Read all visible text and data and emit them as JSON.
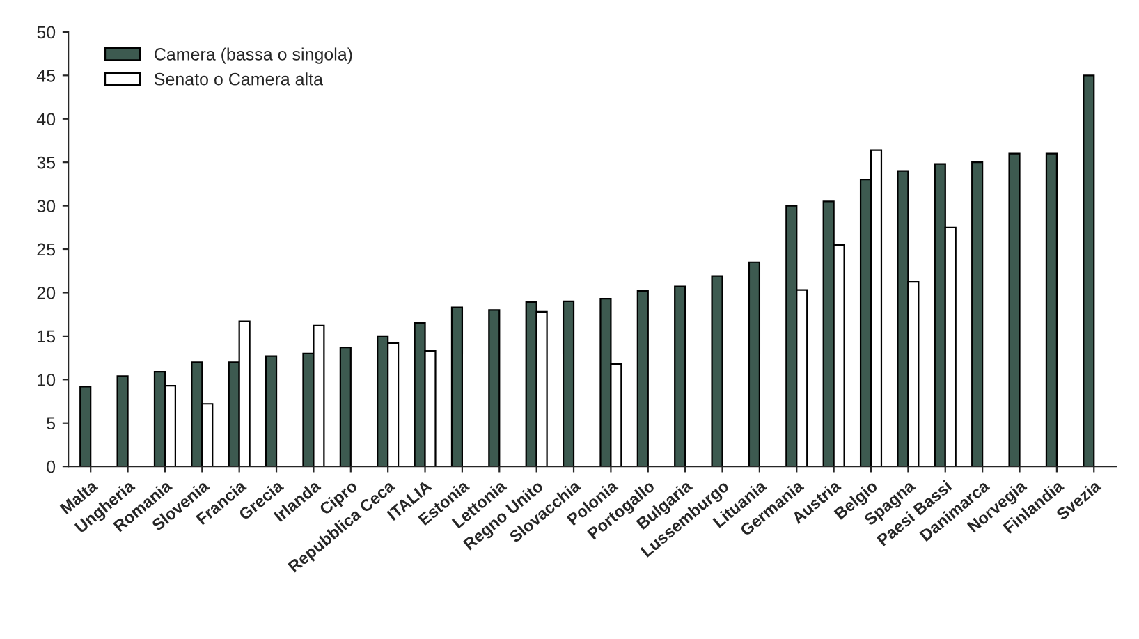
{
  "chart_data": {
    "type": "bar",
    "categories": [
      "Malta",
      "Ungheria",
      "Romania",
      "Slovenia",
      "Francia",
      "Grecia",
      "Irlanda",
      "Cipro",
      "Repubblica Ceca",
      "ITALIA",
      "Estonia",
      "Lettonia",
      "Regno Unito",
      "Slovacchia",
      "Polonia",
      "Portogallo",
      "Bulgaria",
      "Lussemburgo",
      "Lituania",
      "Germania",
      "Austria",
      "Belgio",
      "Spagna",
      "Paesi Bassi",
      "Danimarca",
      "Norvegia",
      "Finlandia",
      "Svezia"
    ],
    "series": [
      {
        "name": "Camera (bassa o singola)",
        "color": "#3d5a50",
        "values": [
          9.2,
          10.4,
          10.9,
          12,
          12,
          12.7,
          13,
          13.7,
          15,
          16.5,
          18.3,
          18,
          18.9,
          19,
          19.3,
          20.2,
          20.7,
          21.9,
          23.5,
          30,
          30.5,
          33,
          34,
          34.8,
          35,
          36,
          36,
          45
        ]
      },
      {
        "name": "Senato o Camera alta",
        "color": "#ffffff",
        "values": [
          null,
          null,
          9.3,
          7.2,
          16.7,
          null,
          16.2,
          null,
          14.2,
          13.3,
          null,
          null,
          17.8,
          null,
          11.8,
          null,
          null,
          null,
          null,
          20.3,
          25.5,
          36.4,
          21.3,
          27.5,
          null,
          null,
          null,
          null
        ]
      }
    ],
    "ylim": [
      0,
      50
    ],
    "yticks": [
      0,
      5,
      10,
      15,
      20,
      25,
      30,
      35,
      40,
      45,
      50
    ],
    "grid": false,
    "legend": "top left"
  }
}
